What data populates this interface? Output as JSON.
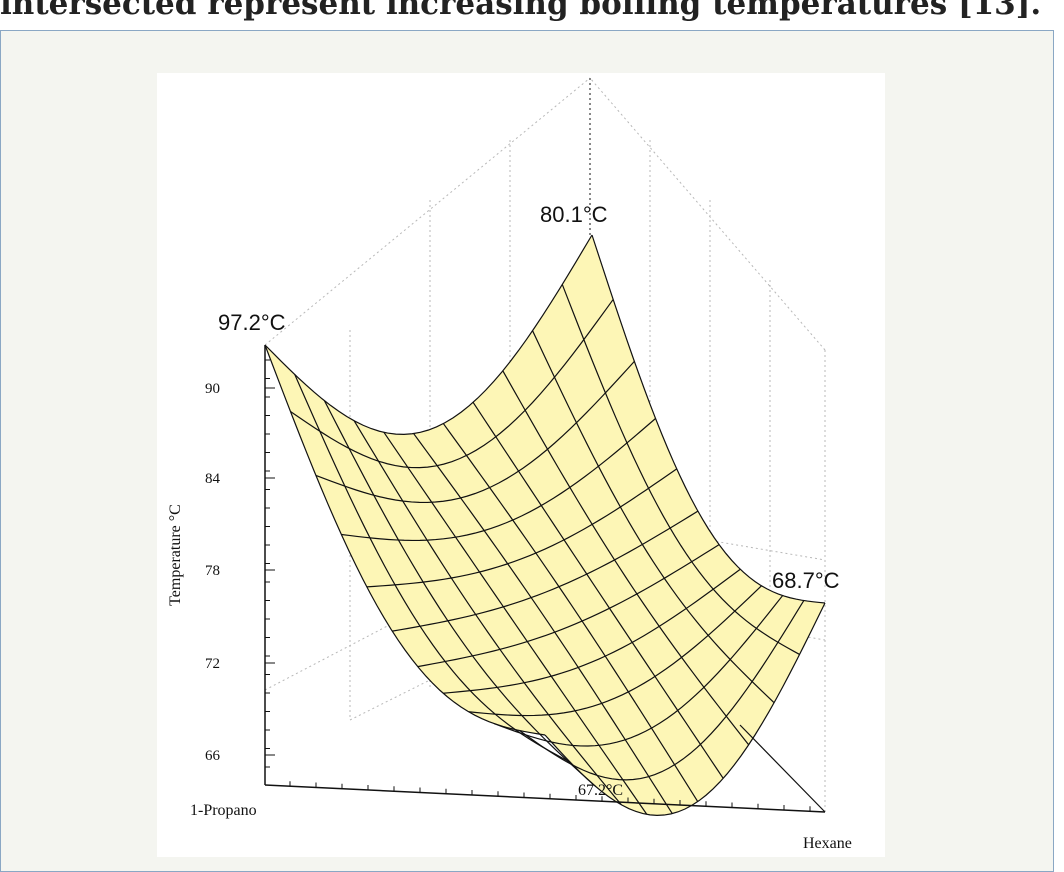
{
  "caption": "intersected represent increasing boiling temperatures [13].",
  "figure": {
    "axis_title": "Temperature °C",
    "ticks": [
      "90",
      "84",
      "78",
      "72",
      "66"
    ],
    "peaks": [
      "97.2°C",
      "80.1°C",
      "68.7°C",
      "67.2°C"
    ],
    "components": [
      "1-Propano",
      "Hexane"
    ]
  }
}
